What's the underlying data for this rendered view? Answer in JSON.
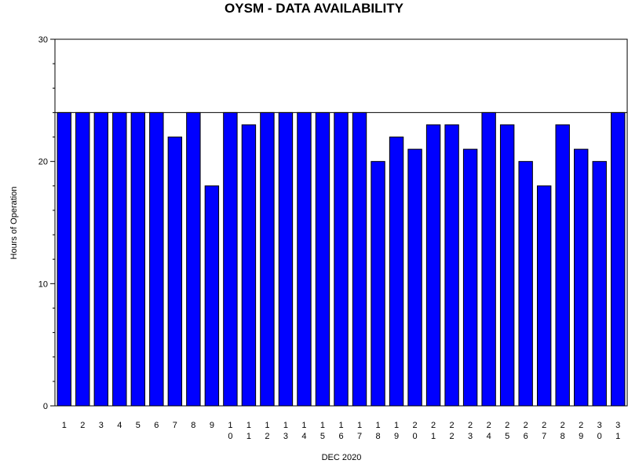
{
  "chart_data": {
    "type": "bar",
    "title": "OYSM - DATA AVAILABILITY",
    "xlabel": "DEC 2020",
    "ylabel": "Hours of Operation",
    "ylim": [
      0,
      30
    ],
    "yticks": [
      0,
      10,
      20,
      30
    ],
    "reference_line": 24,
    "bar_color": "#0000ff",
    "categories": [
      "1",
      "2",
      "3",
      "4",
      "5",
      "6",
      "7",
      "8",
      "9",
      "10",
      "11",
      "12",
      "13",
      "14",
      "15",
      "16",
      "17",
      "18",
      "19",
      "20",
      "21",
      "22",
      "23",
      "24",
      "25",
      "26",
      "27",
      "28",
      "29",
      "30",
      "31"
    ],
    "values": [
      24,
      24,
      24,
      24,
      24,
      24,
      22,
      24,
      18,
      24,
      23,
      24,
      24,
      24,
      24,
      24,
      24,
      20,
      22,
      21,
      23,
      23,
      21,
      24,
      23,
      20,
      18,
      23,
      21,
      20,
      24
    ],
    "grid": false
  }
}
